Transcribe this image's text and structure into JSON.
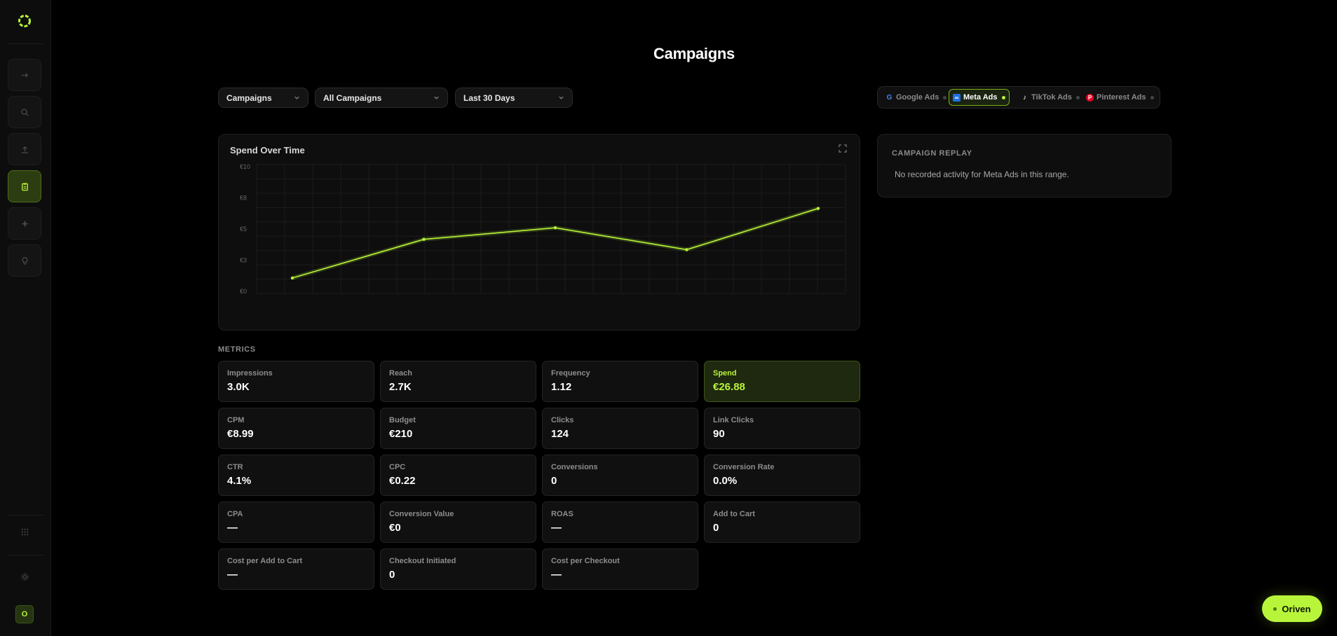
{
  "sidebar": {
    "items": [
      {
        "name": "arrow-right-icon",
        "active": false
      },
      {
        "name": "search-icon",
        "active": false
      },
      {
        "name": "upload-icon",
        "active": false
      },
      {
        "name": "clipboard-icon",
        "active": true
      },
      {
        "name": "sparkle-icon",
        "active": false
      },
      {
        "name": "lightbulb-icon",
        "active": false
      }
    ],
    "bottom": [
      {
        "name": "grid-icon"
      },
      {
        "name": "gear-icon"
      }
    ],
    "avatar": "O"
  },
  "page": {
    "title": "Campaigns"
  },
  "filters": {
    "level": "Campaigns",
    "campaign": "All Campaigns",
    "range": "Last 30 Days"
  },
  "platforms": [
    {
      "label": "Google Ads",
      "icon": "google-icon",
      "active": false
    },
    {
      "label": "Meta Ads",
      "icon": "meta-icon",
      "active": true
    },
    {
      "label": "TikTok Ads",
      "icon": "tiktok-icon",
      "active": false
    },
    {
      "label": "Pinterest Ads",
      "icon": "pinterest-icon",
      "active": false
    }
  ],
  "colors": {
    "accent": "#b8f53a",
    "background": "#000000",
    "card": "#0e0e0e"
  },
  "chart": {
    "title": "Spend Over Time"
  },
  "chart_data": {
    "type": "line",
    "title": "Spend Over Time",
    "xlabel": "",
    "ylabel": "",
    "y_ticks": [
      "€10",
      "€8",
      "€5",
      "€3",
      "€0"
    ],
    "ylim": [
      0,
      10
    ],
    "grid": true,
    "series": [
      {
        "values": [
          1.2,
          4.2,
          5.1,
          3.4,
          6.6
        ]
      }
    ]
  },
  "metrics": {
    "label": "METRICS",
    "items": [
      {
        "label": "Impressions",
        "value": "3.0K",
        "highlight": false
      },
      {
        "label": "Reach",
        "value": "2.7K",
        "highlight": false
      },
      {
        "label": "Frequency",
        "value": "1.12",
        "highlight": false
      },
      {
        "label": "Spend",
        "value": "€26.88",
        "highlight": true
      },
      {
        "label": "CPM",
        "value": "€8.99",
        "highlight": false
      },
      {
        "label": "Budget",
        "value": "€210",
        "highlight": false
      },
      {
        "label": "Clicks",
        "value": "124",
        "highlight": false
      },
      {
        "label": "Link Clicks",
        "value": "90",
        "highlight": false
      },
      {
        "label": "CTR",
        "value": "4.1%",
        "highlight": false
      },
      {
        "label": "CPC",
        "value": "€0.22",
        "highlight": false
      },
      {
        "label": "Conversions",
        "value": "0",
        "highlight": false
      },
      {
        "label": "Conversion Rate",
        "value": "0.0%",
        "highlight": false
      },
      {
        "label": "CPA",
        "value": "—",
        "highlight": false
      },
      {
        "label": "Conversion Value",
        "value": "€0",
        "highlight": false
      },
      {
        "label": "ROAS",
        "value": "—",
        "highlight": false
      },
      {
        "label": "Add to Cart",
        "value": "0",
        "highlight": false
      },
      {
        "label": "Cost per Add to Cart",
        "value": "—",
        "highlight": false
      },
      {
        "label": "Checkout Initiated",
        "value": "0",
        "highlight": false
      },
      {
        "label": "Cost per Checkout",
        "value": "—",
        "highlight": false
      }
    ]
  },
  "replay": {
    "title": "CAMPAIGN REPLAY",
    "message": "No recorded activity for Meta Ads in this range."
  },
  "assistant": {
    "label": "Oriven"
  }
}
